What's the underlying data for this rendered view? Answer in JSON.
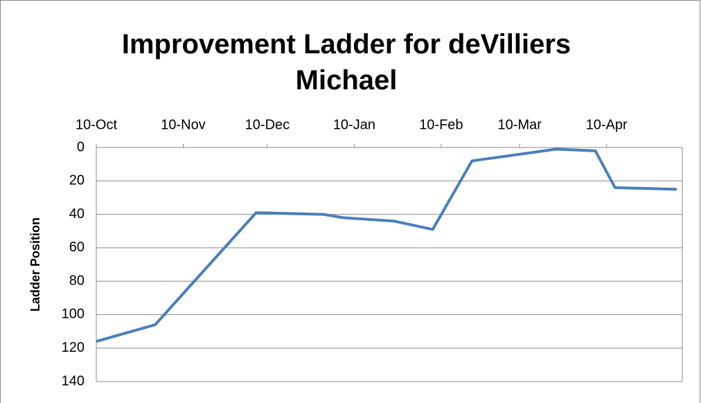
{
  "chart_data": {
    "type": "line",
    "title": "Improvement Ladder for deVilliers Michael",
    "y_label": "Ladder Position",
    "x": [
      0,
      21,
      57,
      81,
      88,
      106,
      120,
      134,
      164,
      178,
      185,
      207
    ],
    "series": [
      {
        "name": "Ladder Position",
        "color": "#4a7ebb",
        "values": [
          116,
          106,
          39,
          40,
          42,
          44,
          49,
          8,
          1,
          2,
          24,
          25
        ]
      }
    ],
    "xlim": [
      0,
      209
    ],
    "xticks": [
      {
        "value": 0,
        "label": "10-Oct"
      },
      {
        "value": 31,
        "label": "10-Nov"
      },
      {
        "value": 61,
        "label": "10-Dec"
      },
      {
        "value": 92,
        "label": "10-Jan"
      },
      {
        "value": 123,
        "label": "10-Feb"
      },
      {
        "value": 151,
        "label": "10-Mar"
      },
      {
        "value": 182,
        "label": "10-Apr"
      }
    ],
    "ylim": [
      0,
      140
    ],
    "yticks": [
      0,
      20,
      40,
      60,
      80,
      100,
      120,
      140
    ],
    "y_inverted": true,
    "grid": true
  }
}
